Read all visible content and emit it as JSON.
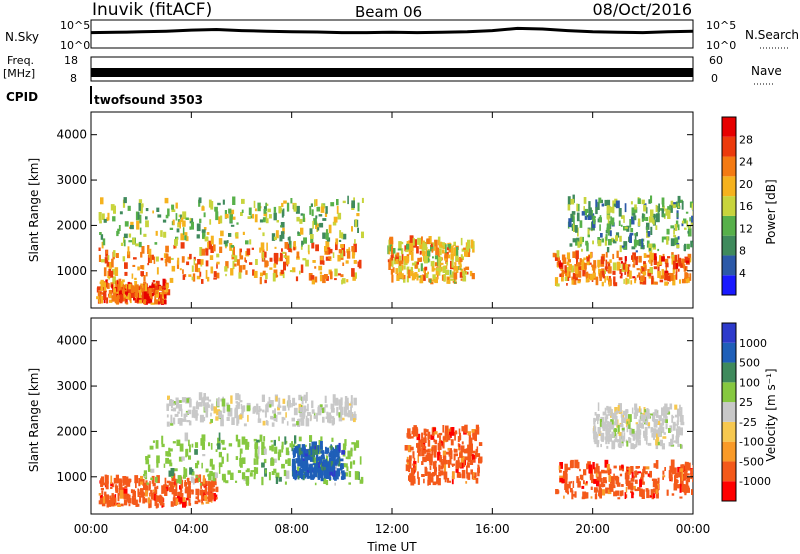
{
  "header": {
    "station": "Inuvik (fitACF)",
    "beam": "Beam 06",
    "date": "08/Oct/2016"
  },
  "colors": {
    "power": [
      "#1a1aff",
      "#2c59a8",
      "#3f8a5c",
      "#57b04a",
      "#c8d43c",
      "#f5b21e",
      "#f47a12",
      "#ec3a0c",
      "#e60000"
    ],
    "velocity": [
      "#ff0000",
      "#f4591a",
      "#f99a28",
      "#f6c850",
      "#c8c8c8",
      "#86c840",
      "#3f8a5c",
      "#1f5fb8",
      "#2d3acb"
    ],
    "line": "#000000"
  },
  "status_panel": {
    "nsky_label": "N.Sky",
    "nsky_ticks": [
      "10^5",
      "10^0"
    ],
    "nsearch_label": "N.Search",
    "nsearch_ticks": [
      "10^5",
      "10^0"
    ],
    "freq_label": "Freq.",
    "freq_unit": "[MHz]",
    "freq_ticks": [
      "18",
      "8"
    ],
    "nave_label": "Nave",
    "nave_ticks": [
      "60",
      "0"
    ],
    "cpid_label": "CPID",
    "cpid_value": "twofsound 3503"
  },
  "chart_data": [
    {
      "type": "heatmap",
      "name": "power",
      "ylabel": "Slant Range [km]",
      "ylim": [
        180,
        4500
      ],
      "yticks": [
        1000,
        2000,
        3000,
        4000
      ],
      "xlim": [
        0,
        24
      ],
      "colorbar_label": "Power [dB]",
      "colorbar_ticks": [
        "4",
        "8",
        "12",
        "16",
        "20",
        "24",
        "28"
      ],
      "colorbar_range": [
        0,
        32
      ],
      "regions": [
        {
          "x": [
            0.3,
            10.8
          ],
          "y": [
            700,
            1500
          ],
          "value": 23
        },
        {
          "x": [
            0.3,
            10.8
          ],
          "y": [
            1500,
            2500
          ],
          "value": 14
        },
        {
          "x": [
            0.2,
            3.0
          ],
          "y": [
            250,
            650
          ],
          "value": 26
        },
        {
          "x": [
            11.8,
            15.2
          ],
          "y": [
            700,
            1600
          ],
          "value": 20
        },
        {
          "x": [
            18.4,
            23.9
          ],
          "y": [
            650,
            1300
          ],
          "value": 24
        },
        {
          "x": [
            19.0,
            24.0
          ],
          "y": [
            1400,
            2500
          ],
          "value": 11
        }
      ]
    },
    {
      "type": "heatmap",
      "name": "velocity",
      "ylabel": "Slant Range [km]",
      "ylim": [
        180,
        4500
      ],
      "yticks": [
        1000,
        2000,
        3000,
        4000
      ],
      "xlim": [
        0,
        24
      ],
      "xlabel": "Time UT",
      "xticks": [
        "00:00",
        "04:00",
        "08:00",
        "12:00",
        "16:00",
        "20:00",
        "00:00"
      ],
      "colorbar_label": "Velocity [m s⁻¹]",
      "colorbar_ticks": [
        "1000",
        "500",
        "100",
        "25",
        "-25",
        "-100",
        "-500",
        "-1000"
      ],
      "regions": [
        {
          "x": [
            0.3,
            5.0
          ],
          "y": [
            300,
            900
          ],
          "value": -250
        },
        {
          "x": [
            2.0,
            10.8
          ],
          "y": [
            800,
            1800
          ],
          "value": 80
        },
        {
          "x": [
            8.0,
            10.0
          ],
          "y": [
            900,
            1600
          ],
          "value": 700
        },
        {
          "x": [
            3.0,
            10.5
          ],
          "y": [
            2100,
            2700
          ],
          "value": 0
        },
        {
          "x": [
            12.5,
            15.5
          ],
          "y": [
            800,
            2000
          ],
          "value": -250
        },
        {
          "x": [
            18.5,
            24.0
          ],
          "y": [
            500,
            1200
          ],
          "value": -250
        },
        {
          "x": [
            20.0,
            23.5
          ],
          "y": [
            1600,
            2500
          ],
          "value": 0
        }
      ]
    }
  ],
  "series_sky": [
    0.55,
    0.56,
    0.58,
    0.6,
    0.64,
    0.66,
    0.62,
    0.6,
    0.58,
    0.57,
    0.55,
    0.55,
    0.56,
    0.55,
    0.56,
    0.58,
    0.62,
    0.7,
    0.68,
    0.62,
    0.58,
    0.56,
    0.55,
    0.58,
    0.6
  ]
}
